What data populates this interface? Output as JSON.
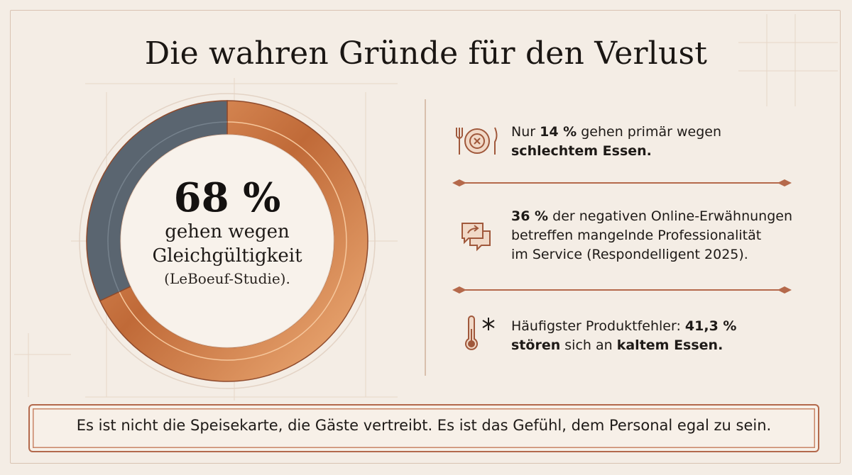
{
  "title": "Die wahren Gründe für den Verlust",
  "chart_data": {
    "type": "pie",
    "style": "donut",
    "values": [
      68,
      32
    ],
    "colors": [
      "#c9743f",
      "#5a6570"
    ],
    "center": {
      "value": "68 %",
      "line1": "gehen wegen",
      "line2": "Gleichgültigkeit",
      "source": "(LeBoeuf-Studie)."
    }
  },
  "stats": [
    {
      "icon": "plate-fork-knife-icon",
      "pre": "Nur ",
      "bold": "14 %",
      "mid": " gehen primär wegen",
      "line2_bold": "schlechtem Essen."
    },
    {
      "icon": "chat-bubbles-icon",
      "bold": "36 %",
      "rest": " der negativen Online-Erwähnungen",
      "line2": "betreffen mangelnde Professionalität",
      "line3": "im Service (Respondelligent 2025)."
    },
    {
      "icon": "thermometer-snowflake-icon",
      "pre": "Häufigster Produktfehler: ",
      "bold": "41,3 %",
      "line2_bold_a": "stören",
      "line2_mid": " sich an ",
      "line2_bold_b": "kaltem Essen."
    }
  ],
  "quote": "Es ist nicht die Speisekarte, die Gäste vertreibt. Es ist das Gefühl, dem Personal egal zu sein."
}
